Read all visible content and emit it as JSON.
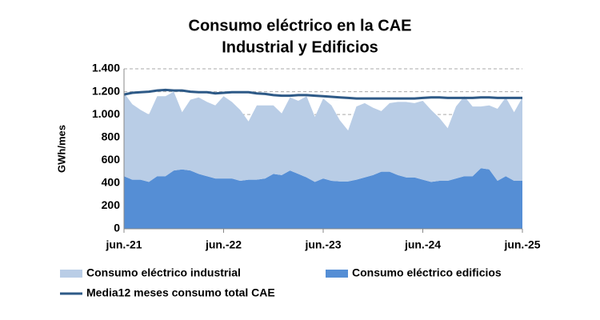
{
  "chart_data": {
    "type": "area",
    "stacked": true,
    "title": [
      "Consumo eléctrico en la CAE",
      "Industrial y Edificios"
    ],
    "y_label": "GWh/mes",
    "categories": [
      "jun.-21",
      null,
      null,
      null,
      null,
      null,
      null,
      null,
      null,
      null,
      null,
      null,
      "jun.-22",
      null,
      null,
      null,
      null,
      null,
      null,
      null,
      null,
      null,
      null,
      null,
      "jun.-23",
      null,
      null,
      null,
      null,
      null,
      null,
      null,
      null,
      null,
      null,
      null,
      "jun.-24",
      null,
      null,
      null,
      null,
      null,
      null,
      null,
      null,
      null,
      null,
      null,
      "jun.-25"
    ],
    "series": [
      {
        "name": "Consumo eléctrico edificios",
        "type": "area",
        "color": "#558ed5",
        "values": [
          460,
          430,
          430,
          410,
          460,
          460,
          510,
          520,
          510,
          480,
          460,
          440,
          440,
          440,
          420,
          430,
          430,
          440,
          480,
          470,
          510,
          480,
          450,
          410,
          440,
          420,
          415,
          415,
          430,
          450,
          470,
          500,
          500,
          470,
          450,
          450,
          430,
          410,
          420,
          420,
          440,
          460,
          460,
          530,
          520,
          420,
          460,
          420,
          420
        ]
      },
      {
        "name": "Consumo eléctrico industrial",
        "type": "area",
        "color": "#b9cde6",
        "values": [
          730,
          660,
          610,
          590,
          700,
          700,
          690,
          500,
          620,
          670,
          650,
          640,
          720,
          670,
          620,
          510,
          650,
          640,
          600,
          540,
          640,
          640,
          710,
          570,
          700,
          660,
          535,
          445,
          640,
          650,
          590,
          530,
          600,
          640,
          660,
          650,
          690,
          630,
          550,
          460,
          630,
          700,
          610,
          540,
          560,
          630,
          690,
          600,
          730
        ]
      },
      {
        "name": "Media12 meses consumo total CAE",
        "type": "line",
        "color": "#2e5a87",
        "values": [
          1175,
          1190,
          1195,
          1200,
          1210,
          1215,
          1210,
          1210,
          1200,
          1195,
          1195,
          1185,
          1190,
          1195,
          1195,
          1195,
          1185,
          1180,
          1170,
          1165,
          1165,
          1170,
          1170,
          1165,
          1160,
          1155,
          1150,
          1145,
          1140,
          1140,
          1140,
          1140,
          1140,
          1140,
          1140,
          1140,
          1145,
          1150,
          1150,
          1145,
          1145,
          1145,
          1145,
          1150,
          1150,
          1145,
          1145,
          1145,
          1145
        ]
      }
    ],
    "ylim": [
      0,
      1400
    ],
    "yticks": [
      0,
      200,
      400,
      600,
      800,
      {
        "value": 1000,
        "label": "1.000"
      },
      {
        "value": 1200,
        "label": "1.200"
      },
      {
        "value": 1400,
        "label": "1.400"
      }
    ],
    "grid": true
  }
}
